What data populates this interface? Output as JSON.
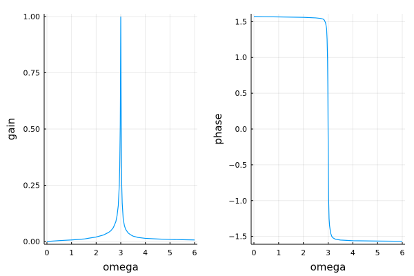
{
  "chart_data": [
    {
      "type": "line",
      "xlabel": "omega",
      "ylabel": "gain",
      "xlim": [
        0,
        6
      ],
      "ylim": [
        0,
        1
      ],
      "xticks": [
        0,
        1,
        2,
        3,
        4,
        5,
        6
      ],
      "xtick_labels": [
        "0",
        "1",
        "2",
        "3",
        "4",
        "5",
        "6"
      ],
      "yticks": [
        0,
        0.25,
        0.5,
        0.75,
        1
      ],
      "ytick_labels": [
        "0.00",
        "0.25",
        "0.50",
        "0.75",
        "1.00"
      ],
      "grid": true,
      "legend": "none",
      "color": "#009AF9",
      "series": [
        {
          "x": [
            0.0,
            0.5,
            1.0,
            1.5,
            2.0,
            2.3,
            2.5,
            2.6,
            2.7,
            2.8,
            2.85,
            2.9,
            2.94,
            2.96,
            2.98,
            2.99,
            3.0,
            3.01,
            3.02,
            3.04,
            3.06,
            3.1,
            3.15,
            3.2,
            3.3,
            3.4,
            3.5,
            3.7,
            4.0,
            4.5,
            5.0,
            5.5,
            6.0
          ],
          "y": [
            0.0,
            0.004,
            0.007,
            0.011,
            0.02,
            0.029,
            0.04,
            0.048,
            0.062,
            0.088,
            0.115,
            0.16,
            0.25,
            0.34,
            0.52,
            0.72,
            1.0,
            0.72,
            0.52,
            0.25,
            0.17,
            0.1,
            0.07,
            0.054,
            0.038,
            0.03,
            0.024,
            0.018,
            0.014,
            0.011,
            0.009,
            0.008,
            0.007
          ]
        }
      ]
    },
    {
      "type": "line",
      "xlabel": "omega",
      "ylabel": "phase",
      "xlim": [
        0,
        6
      ],
      "ylim": [
        -1.5708,
        1.5708
      ],
      "xticks": [
        0,
        1,
        2,
        3,
        4,
        5,
        6
      ],
      "xtick_labels": [
        "0",
        "1",
        "2",
        "3",
        "4",
        "5",
        "6"
      ],
      "yticks": [
        -1.5,
        -1.0,
        -0.5,
        0.0,
        0.5,
        1.0,
        1.5
      ],
      "ytick_labels": [
        "−1.5",
        "−1.0",
        "−0.5",
        "0.0",
        "0.5",
        "1.0",
        "1.5"
      ],
      "grid": true,
      "legend": "none",
      "color": "#009AF9",
      "series": [
        {
          "x": [
            0.0,
            1.0,
            2.0,
            2.5,
            2.7,
            2.8,
            2.85,
            2.9,
            2.94,
            2.96,
            2.98,
            2.99,
            3.0,
            3.01,
            3.02,
            3.04,
            3.06,
            3.1,
            3.15,
            3.2,
            3.3,
            3.5,
            4.0,
            5.0,
            6.0
          ],
          "y": [
            1.5708,
            1.566,
            1.56,
            1.552,
            1.545,
            1.535,
            1.52,
            1.48,
            1.4,
            1.25,
            0.95,
            0.6,
            0.0,
            -0.6,
            -0.95,
            -1.25,
            -1.35,
            -1.45,
            -1.5,
            -1.52,
            -1.54,
            -1.55,
            -1.56,
            -1.565,
            -1.568
          ]
        }
      ]
    }
  ]
}
